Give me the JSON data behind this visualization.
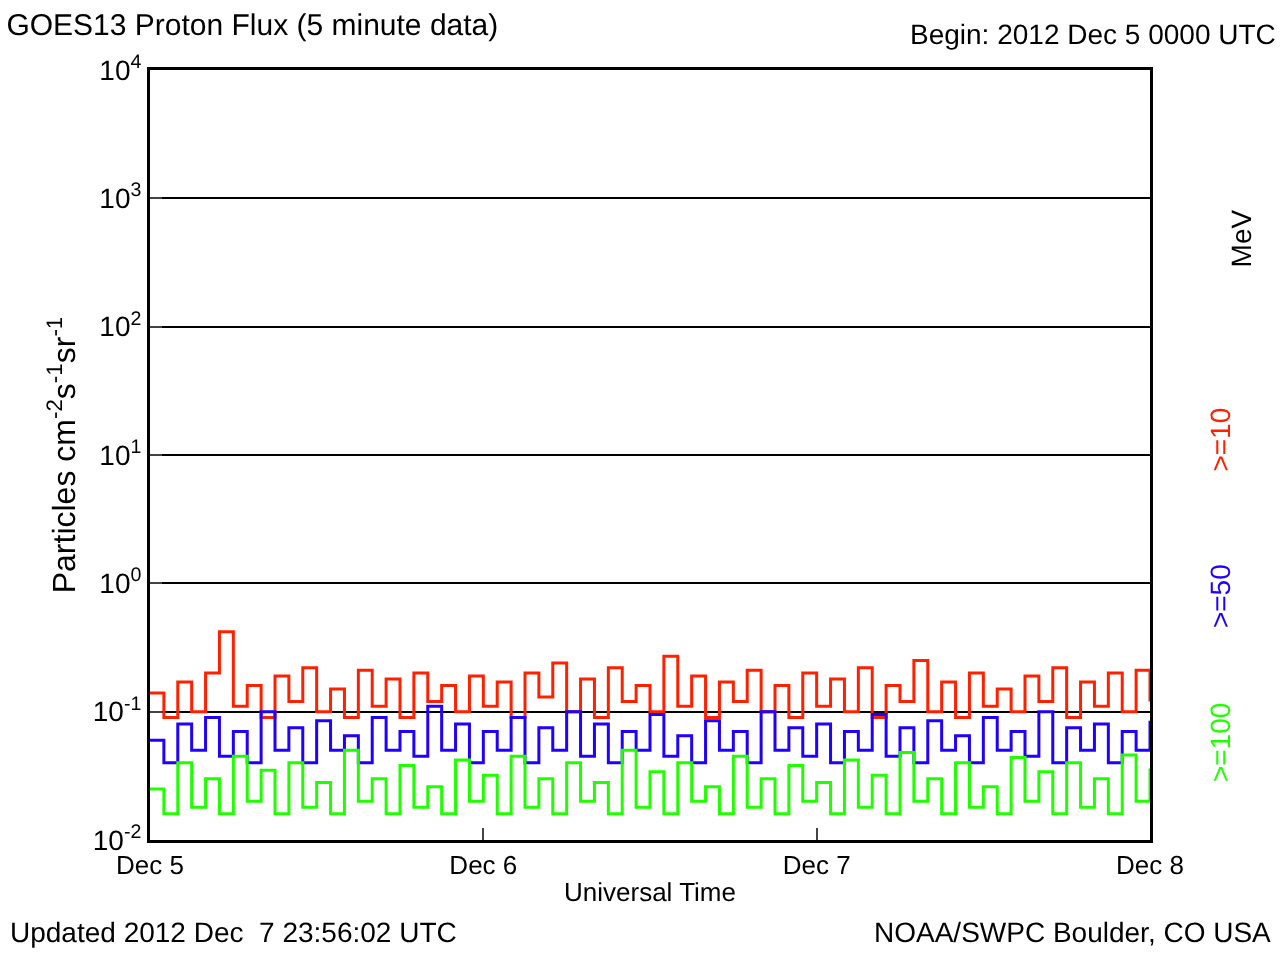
{
  "chart_data": {
    "type": "step",
    "title": "GOES13 Proton Flux (5 minute data)",
    "subtitle": "Begin: 2012 Dec 5 0000 UTC",
    "xlabel": "Universal Time",
    "ylabel": "Particles cm$^{-2}$s$^{-1}$sr$^{-1}$",
    "annotations": [
      "Updated 2012 Dec  7 23:56:02 UTC",
      "NOAA/SWPC Boulder, CO USA",
      "MeV"
    ],
    "x": [
      "2012-12-05T00:00",
      "2012-12-05T01:00",
      "2012-12-05T02:00",
      "2012-12-05T03:00",
      "2012-12-05T04:00",
      "2012-12-05T05:00",
      "2012-12-05T06:00",
      "2012-12-05T07:00",
      "2012-12-05T08:00",
      "2012-12-05T09:00",
      "2012-12-05T10:00",
      "2012-12-05T11:00",
      "2012-12-05T12:00",
      "2012-12-05T13:00",
      "2012-12-05T14:00",
      "2012-12-05T15:00",
      "2012-12-05T16:00",
      "2012-12-05T17:00",
      "2012-12-05T18:00",
      "2012-12-05T19:00",
      "2012-12-05T20:00",
      "2012-12-05T21:00",
      "2012-12-05T22:00",
      "2012-12-05T23:00",
      "2012-12-06T00:00",
      "2012-12-06T01:00",
      "2012-12-06T02:00",
      "2012-12-06T03:00",
      "2012-12-06T04:00",
      "2012-12-06T05:00",
      "2012-12-06T06:00",
      "2012-12-06T07:00",
      "2012-12-06T08:00",
      "2012-12-06T09:00",
      "2012-12-06T10:00",
      "2012-12-06T11:00",
      "2012-12-06T12:00",
      "2012-12-06T13:00",
      "2012-12-06T14:00",
      "2012-12-06T15:00",
      "2012-12-06T16:00",
      "2012-12-06T17:00",
      "2012-12-06T18:00",
      "2012-12-06T19:00",
      "2012-12-06T20:00",
      "2012-12-06T21:00",
      "2012-12-06T22:00",
      "2012-12-06T23:00",
      "2012-12-07T00:00",
      "2012-12-07T01:00",
      "2012-12-07T02:00",
      "2012-12-07T03:00",
      "2012-12-07T04:00",
      "2012-12-07T05:00",
      "2012-12-07T06:00",
      "2012-12-07T07:00",
      "2012-12-07T08:00",
      "2012-12-07T09:00",
      "2012-12-07T10:00",
      "2012-12-07T11:00",
      "2012-12-07T12:00",
      "2012-12-07T13:00",
      "2012-12-07T14:00",
      "2012-12-07T15:00",
      "2012-12-07T16:00",
      "2012-12-07T17:00",
      "2012-12-07T18:00",
      "2012-12-07T19:00",
      "2012-12-07T20:00",
      "2012-12-07T21:00",
      "2012-12-07T22:00",
      "2012-12-07T23:00",
      "2012-12-08T00:00"
    ],
    "series": [
      {
        "name": ">=10",
        "color": "#ff2000",
        "values": [
          0.14,
          0.09,
          0.17,
          0.1,
          0.2,
          0.42,
          0.11,
          0.16,
          0.09,
          0.19,
          0.12,
          0.22,
          0.1,
          0.15,
          0.09,
          0.21,
          0.11,
          0.18,
          0.09,
          0.2,
          0.12,
          0.16,
          0.1,
          0.19,
          0.11,
          0.17,
          0.09,
          0.2,
          0.13,
          0.24,
          0.1,
          0.18,
          0.09,
          0.22,
          0.12,
          0.16,
          0.1,
          0.27,
          0.11,
          0.19,
          0.09,
          0.17,
          0.12,
          0.21,
          0.1,
          0.16,
          0.09,
          0.2,
          0.11,
          0.18,
          0.1,
          0.22,
          0.09,
          0.16,
          0.12,
          0.25,
          0.1,
          0.17,
          0.09,
          0.2,
          0.11,
          0.15,
          0.1,
          0.19,
          0.12,
          0.22,
          0.09,
          0.17,
          0.11,
          0.2,
          0.1,
          0.21,
          0.12
        ]
      },
      {
        "name": ">=50",
        "color": "#2000ff",
        "values": [
          0.06,
          0.04,
          0.08,
          0.05,
          0.09,
          0.045,
          0.07,
          0.04,
          0.1,
          0.05,
          0.075,
          0.04,
          0.085,
          0.05,
          0.065,
          0.04,
          0.09,
          0.05,
          0.07,
          0.045,
          0.11,
          0.05,
          0.08,
          0.04,
          0.07,
          0.05,
          0.09,
          0.04,
          0.075,
          0.05,
          0.1,
          0.045,
          0.08,
          0.04,
          0.07,
          0.05,
          0.095,
          0.045,
          0.065,
          0.04,
          0.085,
          0.05,
          0.07,
          0.04,
          0.1,
          0.05,
          0.075,
          0.045,
          0.08,
          0.04,
          0.07,
          0.05,
          0.095,
          0.045,
          0.075,
          0.04,
          0.085,
          0.05,
          0.065,
          0.04,
          0.09,
          0.05,
          0.07,
          0.045,
          0.1,
          0.04,
          0.075,
          0.05,
          0.08,
          0.04,
          0.07,
          0.05,
          0.085
        ]
      },
      {
        "name": ">=100",
        "color": "#20ff00",
        "values": [
          0.025,
          0.016,
          0.04,
          0.018,
          0.03,
          0.016,
          0.045,
          0.02,
          0.035,
          0.016,
          0.04,
          0.018,
          0.028,
          0.016,
          0.05,
          0.02,
          0.03,
          0.016,
          0.038,
          0.018,
          0.026,
          0.016,
          0.042,
          0.02,
          0.032,
          0.016,
          0.045,
          0.018,
          0.03,
          0.016,
          0.04,
          0.02,
          0.028,
          0.016,
          0.05,
          0.018,
          0.034,
          0.016,
          0.04,
          0.02,
          0.026,
          0.016,
          0.045,
          0.018,
          0.03,
          0.016,
          0.038,
          0.02,
          0.028,
          0.016,
          0.042,
          0.018,
          0.032,
          0.016,
          0.048,
          0.02,
          0.03,
          0.016,
          0.04,
          0.018,
          0.026,
          0.016,
          0.044,
          0.02,
          0.034,
          0.016,
          0.04,
          0.018,
          0.03,
          0.016,
          0.046,
          0.02,
          0.036
        ]
      }
    ],
    "log": "y",
    "grid": "y",
    "legend": false,
    "xlim": [
      "2012-12-05T00:00",
      "2012-12-08T00:00"
    ],
    "xticks": [
      {
        "value": "2012-12-05",
        "label": "Dec 5"
      },
      {
        "value": "2012-12-06",
        "label": "Dec 6"
      },
      {
        "value": "2012-12-07",
        "label": "Dec 7"
      },
      {
        "value": "2012-12-08",
        "label": "Dec 8"
      }
    ],
    "ylim": [
      0.01,
      10000
    ],
    "yticks": [
      {
        "value": 0.01,
        "label": "10$^{-2}$"
      },
      {
        "value": 0.1,
        "label": "10$^{-1}$"
      },
      {
        "value": 1,
        "label": "10$^{0}$"
      },
      {
        "value": 10,
        "label": "10$^{1}$"
      },
      {
        "value": 100,
        "label": "10$^{2}$"
      },
      {
        "value": 1000,
        "label": "10$^{3}$"
      },
      {
        "value": 10000,
        "label": "10$^{4}$"
      }
    ]
  }
}
